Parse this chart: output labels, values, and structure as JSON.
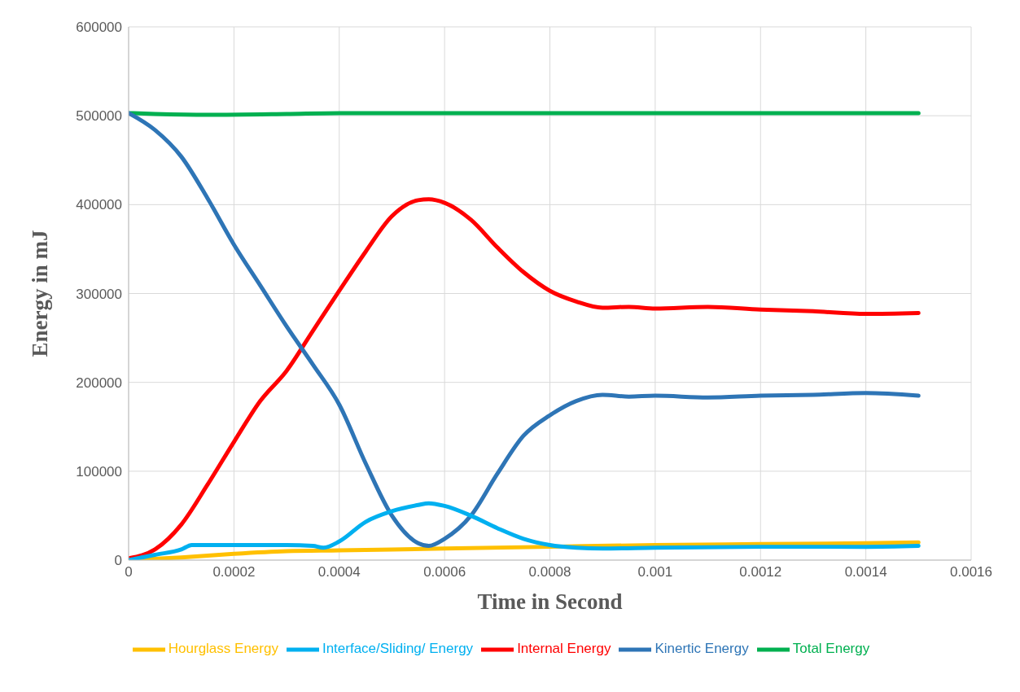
{
  "chart_data": {
    "type": "line",
    "xlabel": "Time in Second",
    "ylabel": "Energy in mJ",
    "xlim": [
      0,
      0.0016
    ],
    "xticks": [
      0,
      0.0002,
      0.0004,
      0.0006,
      0.0008,
      0.001,
      0.0012,
      0.0014,
      0.0016
    ],
    "ylim": [
      0,
      600000
    ],
    "yticks": [
      0,
      100000,
      200000,
      300000,
      400000,
      500000,
      600000
    ],
    "grid": true,
    "legend": "bottom",
    "marker": "none",
    "line_style": "solid",
    "series": [
      {
        "name": "Hourglass Energy",
        "color": "#ffc000",
        "x": [
          0,
          0.0001,
          0.0002,
          0.0003,
          0.0004,
          0.0006,
          0.0008,
          0.001,
          0.0012,
          0.0014,
          0.0015
        ],
        "values": [
          0,
          3000,
          7000,
          10000,
          11000,
          13000,
          15000,
          17000,
          18000,
          19000,
          20000
        ]
      },
      {
        "name": "Total Energy",
        "color": "#00b050",
        "x": [
          0,
          5e-05,
          0.00015,
          0.0003,
          0.0004,
          0.0006,
          0.0008,
          0.001,
          0.0012,
          0.0014,
          0.0015
        ],
        "values": [
          503000,
          502000,
          501000,
          502000,
          503000,
          503000,
          503000,
          503000,
          503000,
          503000,
          503000
        ]
      },
      {
        "name": "Internal Energy",
        "color": "#ff0000",
        "x": [
          0,
          5e-05,
          0.0001,
          0.00015,
          0.0002,
          0.00025,
          0.0003,
          0.00035,
          0.0004,
          0.00045,
          0.0005,
          0.00055,
          0.00057,
          0.0006,
          0.00065,
          0.0007,
          0.00075,
          0.0008,
          0.00085,
          0.0009,
          0.00095,
          0.001,
          0.0011,
          0.0012,
          0.0013,
          0.0014,
          0.0015
        ],
        "values": [
          2000,
          12000,
          40000,
          85000,
          133000,
          179000,
          213000,
          258000,
          303000,
          347000,
          387000,
          405000,
          406000,
          402000,
          383000,
          352000,
          324000,
          303000,
          291000,
          284000,
          285000,
          283000,
          285000,
          282000,
          280000,
          277000,
          278000
        ]
      },
      {
        "name": "Kinertic Energy",
        "color": "#2e75b6",
        "x": [
          0,
          5e-05,
          0.0001,
          0.00015,
          0.0002,
          0.00025,
          0.0003,
          0.00035,
          0.0004,
          0.00045,
          0.0005,
          0.00055,
          0.00057,
          0.0006,
          0.00065,
          0.0007,
          0.00075,
          0.0008,
          0.00085,
          0.0009,
          0.00095,
          0.001,
          0.0011,
          0.0012,
          0.0013,
          0.0014,
          0.0015
        ],
        "values": [
          503000,
          484000,
          454000,
          407000,
          355000,
          309000,
          263000,
          220000,
          175000,
          109000,
          50000,
          19000,
          16000,
          24000,
          50000,
          97000,
          140000,
          163000,
          179000,
          186000,
          184000,
          185000,
          183000,
          185000,
          186000,
          188000,
          185000
        ]
      },
      {
        "name": "Interface/Sliding/ Energy",
        "color": "#00b0f0",
        "x": [
          0,
          5e-05,
          0.0001,
          0.00012,
          0.0002,
          0.0003,
          0.00035,
          0.00037,
          0.0004,
          0.00045,
          0.0005,
          0.00055,
          0.00057,
          0.0006,
          0.00065,
          0.0007,
          0.00075,
          0.0008,
          0.00085,
          0.0009,
          0.001,
          0.0012,
          0.0014,
          0.0015
        ],
        "values": [
          0,
          6000,
          12000,
          17000,
          17000,
          17000,
          16000,
          14000,
          21000,
          43000,
          55000,
          62000,
          64000,
          61000,
          50000,
          36000,
          24000,
          17000,
          14000,
          13000,
          14000,
          15000,
          15000,
          16000
        ]
      }
    ]
  }
}
